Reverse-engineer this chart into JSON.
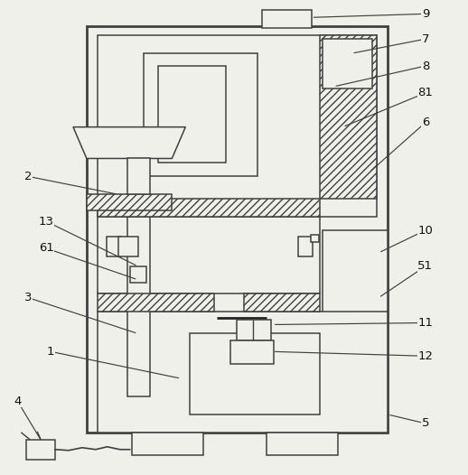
{
  "background_color": "#f0f0eb",
  "line_color": "#404040",
  "lw_main": 1.4,
  "lw_inner": 1.1,
  "fig_w": 5.18,
  "fig_h": 5.26,
  "dpi": 100,
  "label_fontsize": 9.5
}
